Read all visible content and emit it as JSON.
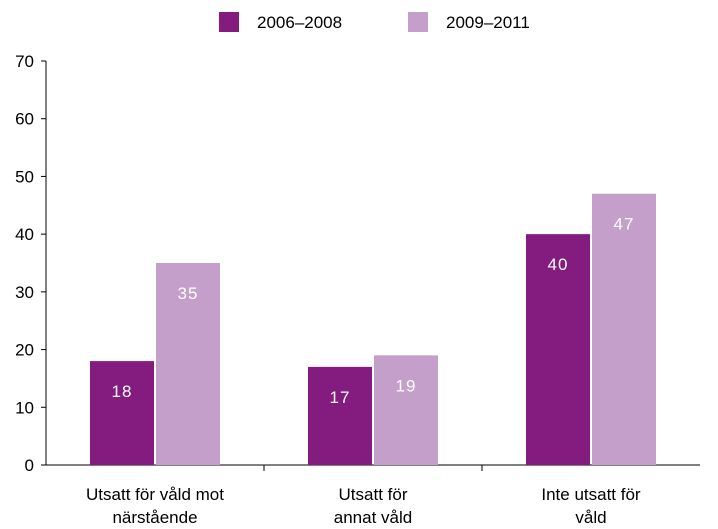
{
  "chart_data": {
    "type": "bar",
    "categories": [
      [
        "Utsatt för våld mot",
        "närstående"
      ],
      [
        "Utsatt för",
        "annat våld"
      ],
      [
        "Inte utsatt för",
        "våld"
      ]
    ],
    "series": [
      {
        "name": "2006–2008",
        "color": "#841b7e",
        "values": [
          18,
          17,
          40
        ]
      },
      {
        "name": "2009–2011",
        "color": "#c49fca",
        "values": [
          35,
          19,
          47
        ]
      }
    ],
    "ylim": [
      0,
      70
    ],
    "yticks": [
      0,
      10,
      20,
      30,
      40,
      50,
      60,
      70
    ],
    "grid": false,
    "legend": "top-center",
    "title": "",
    "xlabel": "",
    "ylabel": ""
  }
}
